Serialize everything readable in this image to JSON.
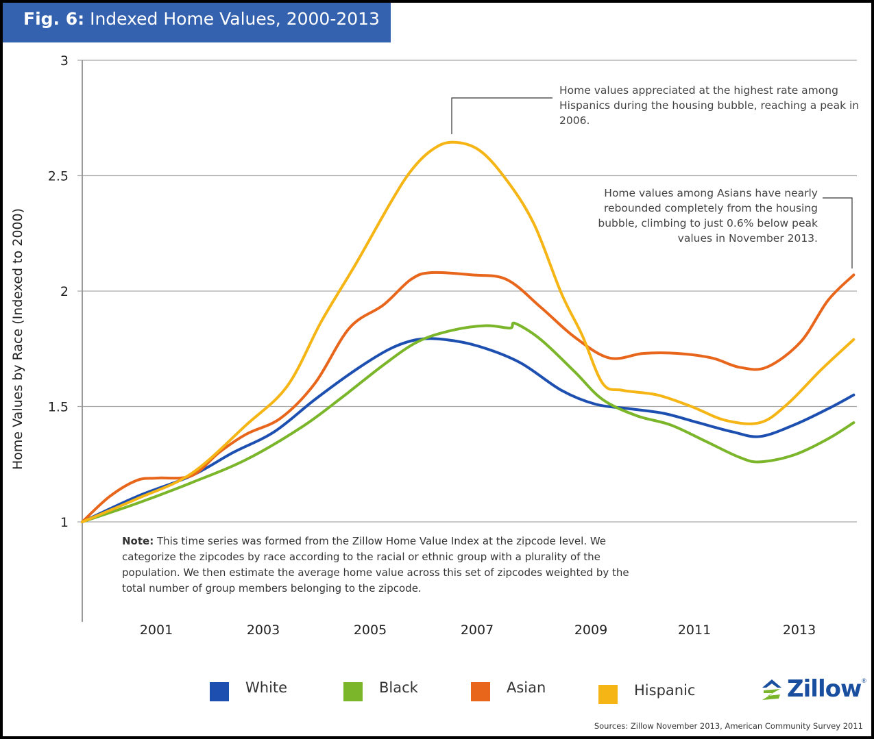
{
  "title": {
    "prefix": "Fig. 6:",
    "text": "Indexed Home Values, 2000-2013"
  },
  "annotations": [
    "Home values appreciated at the highest rate among Hispanics during the housing bubble, reaching a peak in 2006.",
    "Home values among Asians have nearly rebounded completely from the housing bubble, climbing to just 0.6% below peak values in November 2013."
  ],
  "note": {
    "label": "Note:",
    "text": "This time series was formed from the Zillow Home Value Index at the zipcode level. We categorize the zipcodes by race according to the racial or ethnic group with a plurality of the population. We then estimate the average home value across this set of zipcodes weighted by the total number of group members belonging to the zipcode."
  },
  "logo": {
    "text": "Zillow",
    "reg": "®"
  },
  "source": "Sources: Zillow November 2013, American Community Survey 2011",
  "chart_data": {
    "type": "line",
    "title": "Fig. 6: Indexed Home Values, 2000-2013",
    "xlabel": "",
    "ylabel": "Home Values by Race (Indexed to 2000)",
    "xlim": [
      2000.0,
      2013.85
    ],
    "ylim": [
      1,
      3
    ],
    "yticks": [
      1,
      1.5,
      2,
      2.5,
      3
    ],
    "ytick_labels": [
      "1",
      "1.5",
      "2",
      "2.5",
      "3"
    ],
    "xticks": [
      2001,
      2003,
      2005,
      2007,
      2009,
      2011,
      2013
    ],
    "xtick_labels": [
      "2001",
      "2003",
      "2005",
      "2007",
      "2009",
      "2011",
      "2013"
    ],
    "grid": true,
    "legend": "bottom",
    "series": [
      {
        "name": "White",
        "color": "#1c4fb0",
        "x": [
          2000.0,
          2000.98,
          2001.96,
          2002.7,
          2003.44,
          2004.17,
          2004.91,
          2005.52,
          2006.01,
          2006.5,
          2007.12,
          2007.85,
          2008.59,
          2009.2,
          2009.82,
          2010.43,
          2011.04,
          2011.66,
          2012.15,
          2012.76,
          2013.37,
          2013.83
        ],
        "y": [
          1.0,
          1.11,
          1.2,
          1.3,
          1.39,
          1.53,
          1.66,
          1.75,
          1.79,
          1.79,
          1.76,
          1.69,
          1.57,
          1.51,
          1.49,
          1.47,
          1.43,
          1.39,
          1.37,
          1.42,
          1.49,
          1.55
        ]
      },
      {
        "name": "Black",
        "color": "#7ab52a",
        "x": [
          2000.0,
          2000.98,
          2001.96,
          2002.94,
          2003.93,
          2004.66,
          2005.4,
          2006.01,
          2006.63,
          2007.24,
          2007.67,
          2007.76,
          2008.22,
          2008.83,
          2009.33,
          2009.94,
          2010.55,
          2011.17,
          2011.78,
          2012.15,
          2012.76,
          2013.37,
          2013.83
        ],
        "y": [
          1.0,
          1.08,
          1.17,
          1.27,
          1.41,
          1.54,
          1.68,
          1.78,
          1.83,
          1.85,
          1.84,
          1.86,
          1.79,
          1.65,
          1.53,
          1.46,
          1.42,
          1.35,
          1.28,
          1.26,
          1.29,
          1.36,
          1.43
        ]
      },
      {
        "name": "Asian",
        "color": "#e8661b",
        "x": [
          2000.0,
          2000.49,
          2000.98,
          2001.35,
          2001.96,
          2002.45,
          2002.94,
          2003.56,
          2004.17,
          2004.79,
          2005.4,
          2005.89,
          2006.26,
          2006.99,
          2007.61,
          2008.22,
          2008.83,
          2009.45,
          2010.06,
          2010.67,
          2011.29,
          2011.78,
          2012.27,
          2012.88,
          2013.37,
          2013.83
        ],
        "y": [
          1.0,
          1.11,
          1.18,
          1.19,
          1.2,
          1.3,
          1.38,
          1.45,
          1.6,
          1.84,
          1.94,
          2.05,
          2.08,
          2.07,
          2.05,
          1.93,
          1.8,
          1.71,
          1.73,
          1.73,
          1.71,
          1.67,
          1.67,
          1.78,
          1.96,
          2.07
        ]
      },
      {
        "name": "Hispanic",
        "color": "#f5b514",
        "x": [
          2000.0,
          2000.98,
          2001.96,
          2002.94,
          2003.68,
          2004.29,
          2004.91,
          2005.52,
          2005.89,
          2006.26,
          2006.63,
          2007.12,
          2007.61,
          2008.1,
          2008.59,
          2008.96,
          2009.33,
          2009.69,
          2010.31,
          2010.92,
          2011.53,
          2012.15,
          2012.64,
          2013.25,
          2013.83
        ],
        "y": [
          1.0,
          1.1,
          1.21,
          1.42,
          1.59,
          1.87,
          2.12,
          2.38,
          2.52,
          2.61,
          2.645,
          2.61,
          2.48,
          2.29,
          1.99,
          1.81,
          1.6,
          1.57,
          1.55,
          1.5,
          1.44,
          1.43,
          1.51,
          1.66,
          1.79
        ]
      }
    ]
  }
}
